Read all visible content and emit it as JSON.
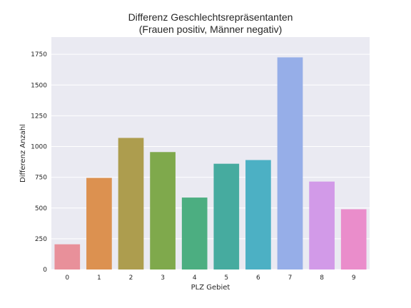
{
  "chart_data": {
    "type": "bar",
    "title": "Differenz Geschlechtsrepräsentanten",
    "subtitle": "(Frauen positiv, Männer negativ)",
    "xlabel": "PLZ Gebiet",
    "ylabel": "Differenz Anzahl",
    "categories": [
      "0",
      "1",
      "2",
      "3",
      "4",
      "5",
      "6",
      "7",
      "8",
      "9"
    ],
    "values": [
      205,
      745,
      1070,
      955,
      585,
      860,
      890,
      1725,
      715,
      490
    ],
    "colors": [
      "#e8909a",
      "#dc9150",
      "#ad9d4e",
      "#7fa94c",
      "#4cae81",
      "#46ab9f",
      "#4cb0c4",
      "#96aee8",
      "#d29ae8",
      "#ea8dcb"
    ],
    "ylim": [
      0,
      1890
    ],
    "yticks": [
      0,
      250,
      500,
      750,
      1000,
      1250,
      1500,
      1750
    ],
    "grid": true,
    "background": "#eaeaf2"
  }
}
